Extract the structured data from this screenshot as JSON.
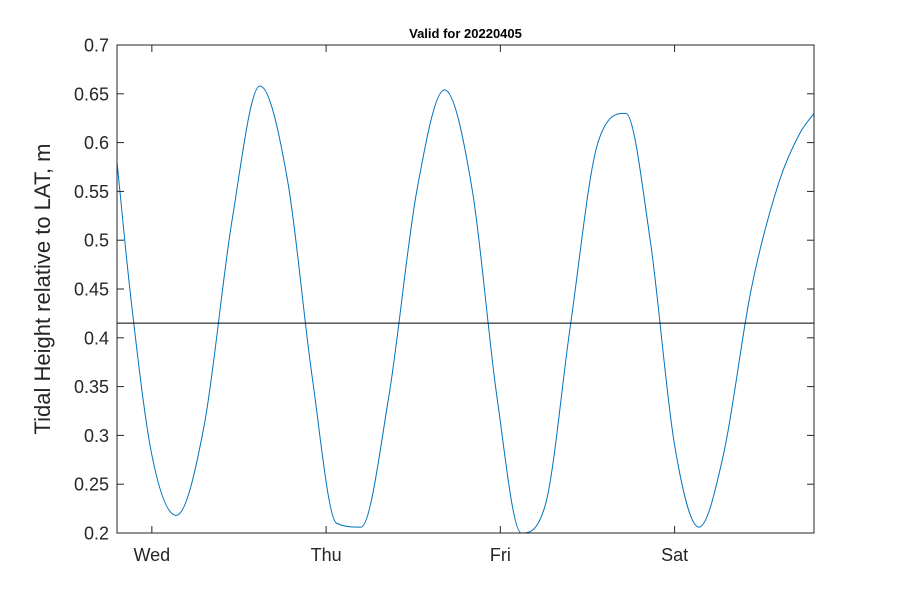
{
  "chart_data": {
    "type": "line",
    "title": "Valid for 20220405",
    "xlabel": "",
    "ylabel": "Tidal Height relative to LAT, m",
    "ylim": [
      0.2,
      0.7
    ],
    "xlim": [
      -0.2,
      3.8
    ],
    "x_tick_values": [
      0,
      1,
      2,
      3
    ],
    "x_tick_labels": [
      "Wed",
      "Thu",
      "Fri",
      "Sat"
    ],
    "y_ticks": [
      0.2,
      0.25,
      0.3,
      0.35,
      0.4,
      0.45,
      0.5,
      0.55,
      0.6,
      0.65,
      0.7
    ],
    "y_tick_labels": [
      "0.2",
      "0.25",
      "0.3",
      "0.35",
      "0.4",
      "0.45",
      "0.5",
      "0.55",
      "0.6",
      "0.65",
      "0.7"
    ],
    "grid": false,
    "series": [
      {
        "color": "#0072BD",
        "x": [
          -0.2,
          -0.12,
          0.0,
          0.14,
          0.3,
          0.46,
          0.62,
          0.78,
          0.92,
          1.06,
          1.2,
          1.36,
          1.52,
          1.68,
          1.84,
          1.98,
          2.12,
          2.26,
          2.4,
          2.56,
          2.72,
          2.86,
          3.0,
          3.14,
          3.28,
          3.44,
          3.6,
          3.72,
          3.8
        ],
        "y": [
          0.58,
          0.44,
          0.28,
          0.218,
          0.31,
          0.52,
          0.658,
          0.56,
          0.36,
          0.21,
          0.206,
          0.34,
          0.55,
          0.654,
          0.55,
          0.34,
          0.2,
          0.23,
          0.41,
          0.6,
          0.63,
          0.5,
          0.29,
          0.206,
          0.28,
          0.45,
          0.56,
          0.61,
          0.63
        ]
      },
      {
        "color": "#000000",
        "x": [
          -0.2,
          3.8
        ],
        "y": [
          0.415,
          0.415
        ]
      }
    ]
  }
}
